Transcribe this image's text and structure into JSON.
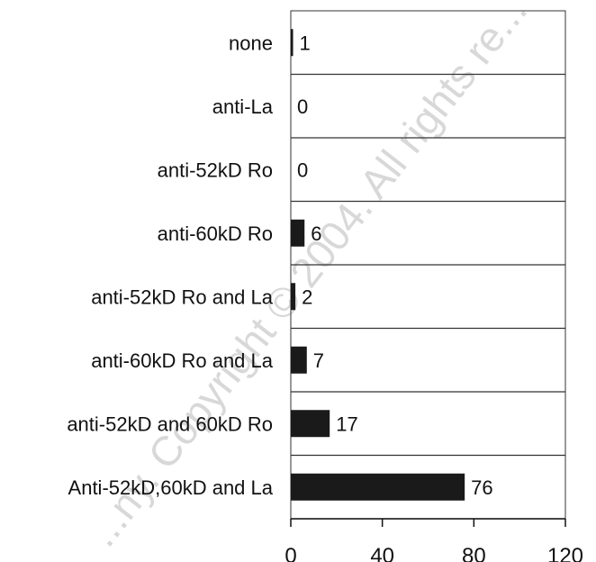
{
  "watermark": "...ny. Copyright © 2004. All rights re...",
  "chart_data": {
    "type": "bar",
    "orientation": "horizontal",
    "categories": [
      "none",
      "anti-La",
      "anti-52kD Ro",
      "anti-60kD Ro",
      "anti-52kD Ro and La",
      "anti-60kD Ro and La",
      "anti-52kD and 60kD Ro",
      "Anti-52kD,60kD and La"
    ],
    "values": [
      1,
      0,
      0,
      6,
      2,
      7,
      17,
      76
    ],
    "xlim": [
      0,
      120
    ],
    "xticks": [
      0,
      40,
      80,
      120
    ],
    "title": "",
    "xlabel": "",
    "ylabel": "",
    "grid": "horizontal separators between categories",
    "bar_color": "#1a1a1a"
  }
}
